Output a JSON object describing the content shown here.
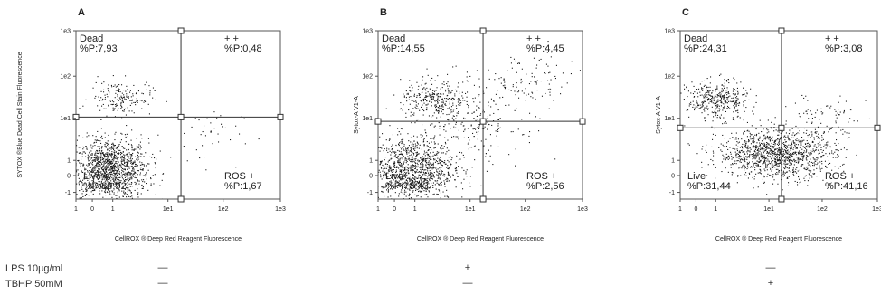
{
  "figure": {
    "ylabel": "SYTOX ®Blue Dead Cell Stain Fluorescence",
    "xlabel": "CellROX ® Deep Red Reagent Fluorescence"
  },
  "treatments": {
    "rows": [
      {
        "label": "LPS 10μg/ml",
        "marks": [
          "—",
          "+",
          "—"
        ]
      },
      {
        "label": "TBHP 50mM",
        "marks": [
          "—",
          "—",
          "+"
        ]
      }
    ]
  },
  "chart_data": [
    {
      "type": "scatter",
      "panel": "A",
      "xlabel": "CellROX ® Deep Red Reagent Fluorescence",
      "ylabel": "SYTOX ®Blue Dead Cell Stain Fluorescence",
      "x_ticks": [
        "1",
        "0",
        "1",
        "1e1",
        "1e2",
        "1e3"
      ],
      "y_ticks": [
        "1e3",
        "1e2",
        "1e1",
        "1",
        "0",
        "-1"
      ],
      "gate": {
        "x": 1.2,
        "y": 1.0
      },
      "quadrants": [
        {
          "name": "Dead",
          "value": "%P:7,93",
          "position": "top-left"
        },
        {
          "name": "+ +",
          "value": "%P:0,48",
          "position": "top-right"
        },
        {
          "name": "Live",
          "value": "%P:89,92",
          "position": "bottom-left"
        },
        {
          "name": "ROS +",
          "value": "%P:1,67",
          "position": "bottom-right"
        }
      ],
      "clusters": [
        {
          "x": -0.1,
          "y": -0.2,
          "sx": 0.35,
          "sy": 0.35,
          "n": 1300
        },
        {
          "x": 0.1,
          "y": 1.45,
          "sx": 0.28,
          "sy": 0.2,
          "n": 170
        },
        {
          "x": 1.6,
          "y": 0.6,
          "sx": 0.35,
          "sy": 0.35,
          "n": 40
        }
      ]
    },
    {
      "type": "scatter",
      "panel": "B",
      "ylabel": "Sytox-A V1-A",
      "xlabel": "CellROX ® Deep Red Reagent Fluorescence",
      "x_ticks": [
        "1",
        "0",
        "1",
        "1e1",
        "1e2",
        "1e3"
      ],
      "y_ticks": [
        "1e3",
        "1e2",
        "1e1",
        "1",
        "0",
        "-1"
      ],
      "gate": {
        "x": 1.2,
        "y": 0.9
      },
      "quadrants": [
        {
          "name": "Dead",
          "value": "%P:14,55",
          "position": "top-left"
        },
        {
          "name": "+ +",
          "value": "%P:4,45",
          "position": "top-right"
        },
        {
          "name": "Live",
          "value": "%P:78,43",
          "position": "bottom-left"
        },
        {
          "name": "ROS +",
          "value": "%P:2,56",
          "position": "bottom-right"
        }
      ],
      "clusters": [
        {
          "x": -0.1,
          "y": -0.2,
          "sx": 0.38,
          "sy": 0.38,
          "n": 1100
        },
        {
          "x": 0.3,
          "y": 1.4,
          "sx": 0.3,
          "sy": 0.22,
          "n": 260
        },
        {
          "x": 0.9,
          "y": 0.9,
          "sx": 0.5,
          "sy": 0.5,
          "n": 260
        },
        {
          "x": 2.0,
          "y": 1.8,
          "sx": 0.45,
          "sy": 0.35,
          "n": 110
        }
      ]
    },
    {
      "type": "scatter",
      "panel": "C",
      "ylabel": "Sytox-A V1-A",
      "xlabel": "CellROX ® Deep Red Reagent Fluorescence",
      "x_ticks": [
        "1",
        "0",
        "1",
        "1e1",
        "1e2",
        "1e3"
      ],
      "y_ticks": [
        "1e3",
        "1e2",
        "1e1",
        "1",
        "0",
        "-1"
      ],
      "gate": {
        "x": 1.2,
        "y": 0.75
      },
      "quadrants": [
        {
          "name": "Dead",
          "value": "%P:24,31",
          "position": "top-left"
        },
        {
          "name": "+ +",
          "value": "%P:3,08",
          "position": "top-right"
        },
        {
          "name": "Live",
          "value": "%P:31,44",
          "position": "bottom-left"
        },
        {
          "name": "ROS +",
          "value": "%P:41,16",
          "position": "bottom-right"
        }
      ],
      "clusters": [
        {
          "x": 0.0,
          "y": 1.4,
          "sx": 0.28,
          "sy": 0.22,
          "n": 380
        },
        {
          "x": 1.1,
          "y": 0.15,
          "sx": 0.55,
          "sy": 0.28,
          "n": 1200
        },
        {
          "x": 2.0,
          "y": 0.9,
          "sx": 0.4,
          "sy": 0.35,
          "n": 90
        }
      ]
    }
  ]
}
